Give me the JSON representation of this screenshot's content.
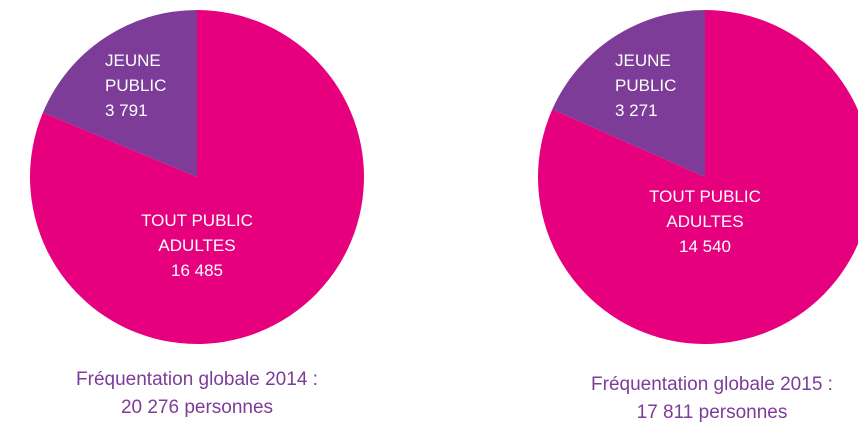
{
  "chart_data": [
    {
      "type": "pie",
      "title": "Fréquentation globale 2014 :",
      "subtitle": "20 276 personnes",
      "categories": [
        "JEUNE PUBLIC",
        "TOUT PUBLIC ADULTES"
      ],
      "values": [
        3791,
        16485
      ],
      "value_labels": [
        "3 791",
        "16 485"
      ],
      "colors": [
        "#7d3c98",
        "#e6007e"
      ]
    },
    {
      "type": "pie",
      "title": "Fréquentation globale 2015 :",
      "subtitle": "17 811 personnes",
      "categories": [
        "JEUNE PUBLIC",
        "TOUT PUBLIC ADULTES"
      ],
      "values": [
        3271,
        14540
      ],
      "value_labels": [
        "3 271",
        "14 540"
      ],
      "colors": [
        "#7d3c98",
        "#e6007e"
      ]
    }
  ]
}
